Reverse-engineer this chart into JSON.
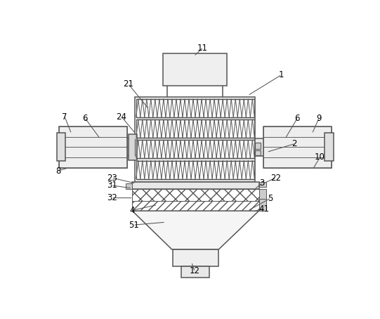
{
  "bg": "#ffffff",
  "lc": "#555555",
  "lw": 1.1,
  "fig_w": 5.41,
  "fig_h": 4.54,
  "dpi": 100,
  "annotations": [
    [
      "1",
      430,
      68,
      370,
      105
    ],
    [
      "2",
      455,
      195,
      405,
      210
    ],
    [
      "3",
      395,
      268,
      382,
      278
    ],
    [
      "4",
      155,
      318,
      200,
      308
    ],
    [
      "5",
      410,
      296,
      370,
      318
    ],
    [
      "6",
      68,
      148,
      95,
      185
    ],
    [
      "6",
      460,
      148,
      438,
      185
    ],
    [
      "7",
      30,
      145,
      42,
      175
    ],
    [
      "8",
      18,
      245,
      35,
      240
    ],
    [
      "9",
      500,
      148,
      488,
      175
    ],
    [
      "10",
      502,
      220,
      490,
      240
    ],
    [
      "11",
      285,
      18,
      270,
      32
    ],
    [
      "12",
      270,
      430,
      265,
      415
    ],
    [
      "21",
      148,
      85,
      185,
      130
    ],
    [
      "22",
      420,
      258,
      398,
      268
    ],
    [
      "23",
      118,
      258,
      160,
      268
    ],
    [
      "24",
      135,
      145,
      160,
      175
    ],
    [
      "31",
      118,
      272,
      153,
      277
    ],
    [
      "32",
      118,
      295,
      155,
      295
    ],
    [
      "41",
      398,
      315,
      380,
      320
    ],
    [
      "51",
      158,
      345,
      215,
      340
    ]
  ]
}
